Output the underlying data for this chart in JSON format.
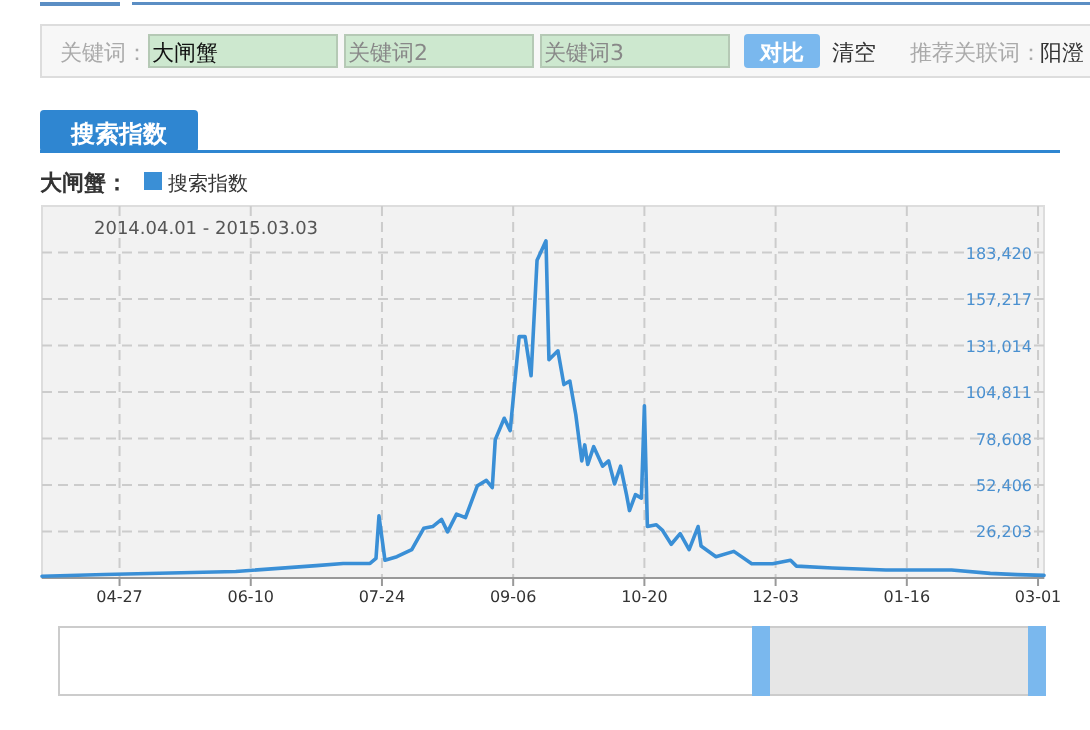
{
  "chart_data": {
    "type": "line",
    "title": "搜索指数",
    "legend_title": "大闸蟹：",
    "annotations": [
      "关键词：",
      "大闸蟹",
      "关键词2",
      "关键词3",
      "对比",
      "清空",
      "推荐关联词：",
      "阳澄",
      "2014.04.01 - 2015.03.03"
    ],
    "xlim": [
      "2014-04-01",
      "2015-03-03"
    ],
    "xticks": [
      {
        "value": "2014-04-27",
        "label": "04-27"
      },
      {
        "value": "2014-06-10",
        "label": "06-10"
      },
      {
        "value": "2014-07-24",
        "label": "07-24"
      },
      {
        "value": "2014-09-06",
        "label": "09-06"
      },
      {
        "value": "2014-10-20",
        "label": "10-20"
      },
      {
        "value": "2014-12-03",
        "label": "12-03"
      },
      {
        "value": "2015-01-16",
        "label": "01-16"
      },
      {
        "value": "2015-03-01",
        "label": "03-01"
      }
    ],
    "ylim": [
      0,
      209623
    ],
    "yticks": [
      {
        "value": 26203,
        "label": "26,203"
      },
      {
        "value": 52406,
        "label": "52,406"
      },
      {
        "value": 78608,
        "label": "78,608"
      },
      {
        "value": 104811,
        "label": "104,811"
      },
      {
        "value": 131014,
        "label": "131,014"
      },
      {
        "value": 157217,
        "label": "157,217"
      },
      {
        "value": 183420,
        "label": "183,420"
      }
    ],
    "grid": true,
    "legend": "top left",
    "marker": "none",
    "line_style": "solid",
    "series": [
      {
        "name": "搜索指数",
        "color": "#3a8fd6",
        "x": [
          "2014-04-01",
          "2014-04-22",
          "2014-06-05",
          "2014-07-02",
          "2014-07-11",
          "2014-07-20",
          "2014-07-22",
          "2014-07-23",
          "2014-07-25",
          "2014-07-29",
          "2014-08-03",
          "2014-08-07",
          "2014-08-10",
          "2014-08-13",
          "2014-08-15",
          "2014-08-18",
          "2014-08-21",
          "2014-08-25",
          "2014-08-28",
          "2014-08-30",
          "2014-08-31",
          "2014-09-03",
          "2014-09-05",
          "2014-09-08",
          "2014-09-10",
          "2014-09-12",
          "2014-09-14",
          "2014-09-17",
          "2014-09-18",
          "2014-09-21",
          "2014-09-23",
          "2014-09-25",
          "2014-09-27",
          "2014-09-29",
          "2014-09-30",
          "2014-10-01",
          "2014-10-03",
          "2014-10-06",
          "2014-10-08",
          "2014-10-10",
          "2014-10-12",
          "2014-10-14",
          "2014-10-15",
          "2014-10-17",
          "2014-10-19",
          "2014-10-20",
          "2014-10-21",
          "2014-10-24",
          "2014-10-26",
          "2014-10-29",
          "2014-11-01",
          "2014-11-04",
          "2014-11-07",
          "2014-11-08",
          "2014-11-13",
          "2014-11-19",
          "2014-11-25",
          "2014-12-02",
          "2014-12-08",
          "2014-12-10",
          "2014-12-22",
          "2015-01-09",
          "2015-01-31",
          "2015-02-13",
          "2015-02-22",
          "2015-03-03"
        ],
        "values": [
          1000,
          2000,
          3700,
          7000,
          8200,
          8200,
          11000,
          35000,
          10000,
          12000,
          16000,
          28000,
          29000,
          33000,
          26000,
          36000,
          34000,
          52000,
          55000,
          51000,
          78000,
          90000,
          83000,
          136000,
          136000,
          114000,
          179000,
          190000,
          123000,
          128000,
          109000,
          111000,
          92000,
          66000,
          75000,
          64000,
          74000,
          63000,
          66000,
          53000,
          63000,
          47000,
          38000,
          47000,
          45000,
          97000,
          29000,
          30000,
          27000,
          19000,
          25000,
          16000,
          29000,
          18000,
          12000,
          15000,
          8000,
          8000,
          10000,
          6700,
          5600,
          4500,
          4500,
          2600,
          1900,
          1500
        ]
      }
    ]
  }
}
